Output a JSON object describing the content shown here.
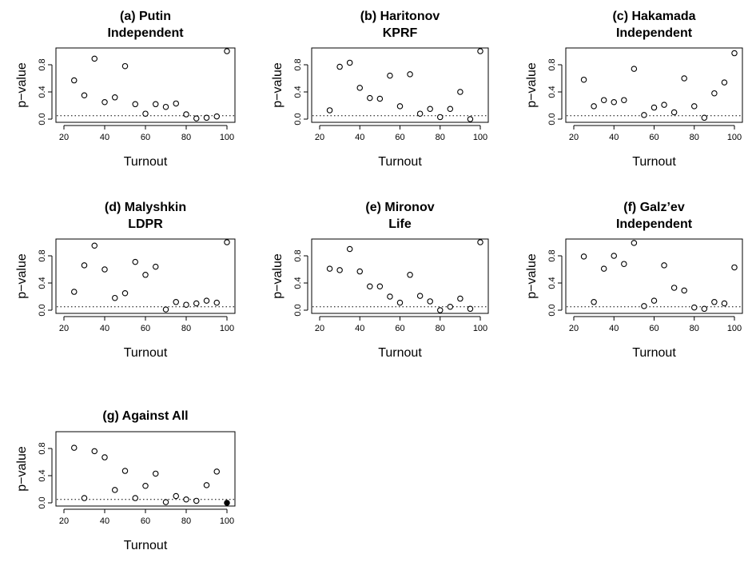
{
  "chart_data": [
    {
      "type": "scatter",
      "title": "(a) Putin",
      "subtitle": "Independent",
      "xlabel": "Turnout",
      "ylabel": "p−value",
      "xlim": [
        20,
        100
      ],
      "ylim": [
        0,
        1
      ],
      "xticks": [
        20,
        40,
        60,
        80,
        100
      ],
      "yticks": [
        0.0,
        0.4,
        0.8
      ],
      "reference_line": 0.05,
      "x": [
        25,
        30,
        35,
        40,
        45,
        50,
        55,
        60,
        65,
        70,
        75,
        80,
        85,
        90,
        95,
        100
      ],
      "y": [
        0.57,
        0.35,
        0.89,
        0.25,
        0.32,
        0.78,
        0.22,
        0.08,
        0.22,
        0.18,
        0.23,
        0.07,
        0.01,
        0.02,
        0.04,
        1.0
      ],
      "filled": []
    },
    {
      "type": "scatter",
      "title": "(b) Haritonov",
      "subtitle": "KPRF",
      "xlabel": "Turnout",
      "ylabel": "p−value",
      "xlim": [
        20,
        100
      ],
      "ylim": [
        0,
        1
      ],
      "xticks": [
        20,
        40,
        60,
        80,
        100
      ],
      "yticks": [
        0.0,
        0.4,
        0.8
      ],
      "reference_line": 0.05,
      "x": [
        25,
        30,
        35,
        40,
        45,
        50,
        55,
        60,
        65,
        70,
        75,
        80,
        85,
        90,
        95,
        100
      ],
      "y": [
        0.13,
        0.77,
        0.83,
        0.46,
        0.31,
        0.3,
        0.64,
        0.19,
        0.66,
        0.08,
        0.15,
        0.03,
        0.15,
        0.4,
        0.0,
        1.0
      ],
      "filled": []
    },
    {
      "type": "scatter",
      "title": "(c) Hakamada",
      "subtitle": "Independent",
      "xlabel": "Turnout",
      "ylabel": "p−value",
      "xlim": [
        20,
        100
      ],
      "ylim": [
        0,
        1
      ],
      "xticks": [
        20,
        40,
        60,
        80,
        100
      ],
      "yticks": [
        0.0,
        0.4,
        0.8
      ],
      "reference_line": 0.05,
      "x": [
        25,
        30,
        35,
        40,
        45,
        50,
        55,
        60,
        65,
        70,
        75,
        80,
        85,
        90,
        95,
        100
      ],
      "y": [
        0.58,
        0.19,
        0.28,
        0.25,
        0.28,
        0.74,
        0.06,
        0.17,
        0.21,
        0.1,
        0.6,
        0.19,
        0.02,
        0.38,
        0.54,
        0.97
      ],
      "filled": []
    },
    {
      "type": "scatter",
      "title": "(d) Malyshkin",
      "subtitle": "LDPR",
      "xlabel": "Turnout",
      "ylabel": "p−value",
      "xlim": [
        20,
        100
      ],
      "ylim": [
        0,
        1
      ],
      "xticks": [
        20,
        40,
        60,
        80,
        100
      ],
      "yticks": [
        0.0,
        0.4,
        0.8
      ],
      "reference_line": 0.05,
      "x": [
        25,
        30,
        35,
        40,
        45,
        50,
        55,
        60,
        65,
        70,
        75,
        80,
        85,
        90,
        95,
        100
      ],
      "y": [
        0.27,
        0.66,
        0.95,
        0.6,
        0.18,
        0.25,
        0.71,
        0.52,
        0.64,
        0.01,
        0.12,
        0.08,
        0.1,
        0.14,
        0.11,
        1.0
      ],
      "filled": []
    },
    {
      "type": "scatter",
      "title": "(e) Mironov",
      "subtitle": "Life",
      "xlabel": "Turnout",
      "ylabel": "p−value",
      "xlim": [
        20,
        100
      ],
      "ylim": [
        0,
        1
      ],
      "xticks": [
        20,
        40,
        60,
        80,
        100
      ],
      "yticks": [
        0.0,
        0.4,
        0.8
      ],
      "reference_line": 0.05,
      "x": [
        25,
        30,
        35,
        40,
        45,
        50,
        55,
        60,
        65,
        70,
        75,
        80,
        85,
        90,
        95,
        100
      ],
      "y": [
        0.61,
        0.59,
        0.9,
        0.57,
        0.35,
        0.35,
        0.2,
        0.11,
        0.52,
        0.21,
        0.13,
        0.0,
        0.05,
        0.17,
        0.02,
        1.0
      ],
      "filled": []
    },
    {
      "type": "scatter",
      "title": "(f) Galz’ev",
      "subtitle": "Independent",
      "xlabel": "Turnout",
      "ylabel": "p−value",
      "xlim": [
        20,
        100
      ],
      "ylim": [
        0,
        1
      ],
      "xticks": [
        20,
        40,
        60,
        80,
        100
      ],
      "yticks": [
        0.0,
        0.4,
        0.8
      ],
      "reference_line": 0.05,
      "x": [
        25,
        30,
        35,
        40,
        45,
        50,
        55,
        60,
        65,
        70,
        75,
        80,
        85,
        90,
        95,
        100
      ],
      "y": [
        0.79,
        0.12,
        0.61,
        0.8,
        0.68,
        0.99,
        0.06,
        0.14,
        0.66,
        0.33,
        0.29,
        0.04,
        0.02,
        0.12,
        0.1,
        0.63
      ],
      "filled": []
    },
    {
      "type": "scatter",
      "title": "(g) Against All",
      "subtitle": "",
      "xlabel": "Turnout",
      "ylabel": "p−value",
      "xlim": [
        20,
        100
      ],
      "ylim": [
        0,
        1
      ],
      "xticks": [
        20,
        40,
        60,
        80,
        100
      ],
      "yticks": [
        0.0,
        0.4,
        0.8
      ],
      "reference_line": 0.05,
      "x": [
        25,
        30,
        35,
        40,
        45,
        50,
        55,
        60,
        65,
        70,
        75,
        80,
        85,
        90,
        95,
        100
      ],
      "y": [
        0.81,
        0.07,
        0.76,
        0.67,
        0.19,
        0.47,
        0.07,
        0.25,
        0.43,
        0.01,
        0.1,
        0.05,
        0.03,
        0.26,
        0.46,
        0.0
      ],
      "filled": [
        100
      ]
    }
  ]
}
